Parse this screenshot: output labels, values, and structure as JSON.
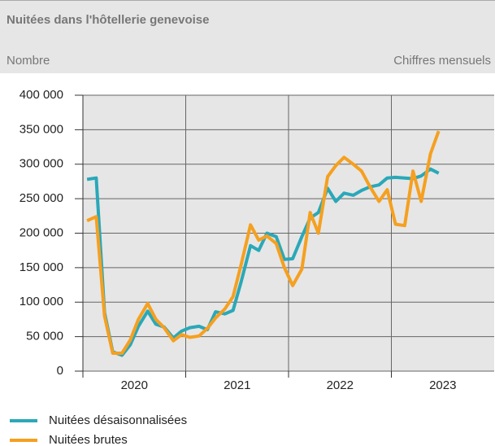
{
  "chart_data": {
    "type": "line",
    "title": "Nuitées dans l'hôtellerie genevoise",
    "y_label": "Nombre",
    "subtitle": "Chiffres mensuels",
    "x": [
      2020.04,
      2020.13,
      2020.21,
      2020.29,
      2020.38,
      2020.46,
      2020.54,
      2020.63,
      2020.71,
      2020.79,
      2020.88,
      2020.96,
      2021.04,
      2021.13,
      2021.21,
      2021.29,
      2021.38,
      2021.46,
      2021.54,
      2021.63,
      2021.71,
      2021.79,
      2021.88,
      2021.96,
      2022.04,
      2022.13,
      2022.21,
      2022.29,
      2022.38,
      2022.46,
      2022.54,
      2022.63,
      2022.71,
      2022.79,
      2022.88,
      2022.96,
      2023.04,
      2023.13,
      2023.21,
      2023.29,
      2023.38,
      2023.46
    ],
    "series": [
      {
        "name": "Nuitées désaisonnalisées",
        "color": "#2aa8b8",
        "values": [
          278000,
          280000,
          85000,
          28000,
          23000,
          38000,
          65000,
          87000,
          68000,
          64000,
          48000,
          58000,
          63000,
          65000,
          60000,
          86000,
          83000,
          88000,
          130000,
          182000,
          175000,
          200000,
          195000,
          162000,
          163000,
          195000,
          222000,
          230000,
          265000,
          246000,
          258000,
          255000,
          262000,
          267000,
          270000,
          280000,
          281000,
          280000,
          279000,
          283000,
          293000,
          287000
        ]
      },
      {
        "name": "Nuitées brutes",
        "color": "#f5a020",
        "values": [
          218000,
          224000,
          80000,
          26000,
          26000,
          45000,
          75000,
          98000,
          75000,
          63000,
          44000,
          53000,
          49000,
          51000,
          62000,
          77000,
          90000,
          108000,
          155000,
          212000,
          190000,
          196000,
          185000,
          150000,
          124000,
          148000,
          230000,
          200000,
          282000,
          298000,
          310000,
          300000,
          290000,
          268000,
          246000,
          263000,
          213000,
          211000,
          290000,
          246000,
          315000,
          348000
        ]
      }
    ],
    "xlim": [
      2020,
      2024
    ],
    "xticks": [
      {
        "value": 2020.5,
        "label": "2020"
      },
      {
        "value": 2021.5,
        "label": "2021"
      },
      {
        "value": 2022.5,
        "label": "2022"
      },
      {
        "value": 2023.5,
        "label": "2023"
      }
    ],
    "ylim": [
      0,
      400000
    ],
    "yticks": [
      0,
      {
        "value": 50000,
        "label": "50 000"
      },
      {
        "value": 100000,
        "label": "100 000"
      },
      {
        "value": 150000,
        "label": "150 000"
      },
      {
        "value": 200000,
        "label": "200 000"
      },
      {
        "value": 250000,
        "label": "250 000"
      },
      {
        "value": 300000,
        "label": "300 000"
      },
      {
        "value": 350000,
        "label": "350 000"
      },
      {
        "value": 400000,
        "label": "400 000"
      }
    ],
    "grid": true,
    "legend": "bottom"
  }
}
